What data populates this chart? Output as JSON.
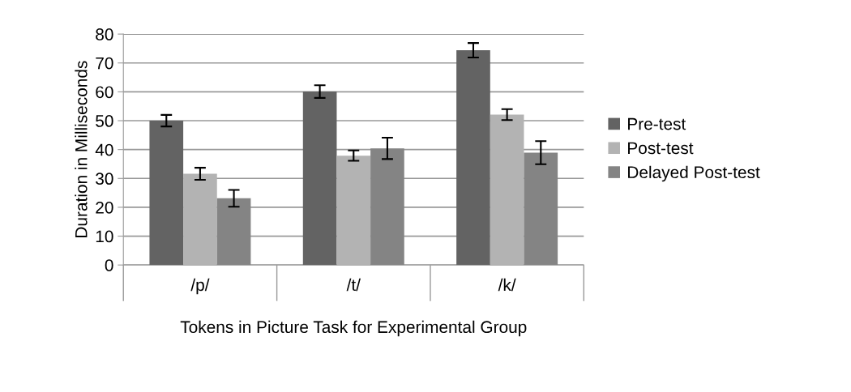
{
  "chart_data": {
    "type": "bar",
    "xlabel": "Tokens in Picture Task for Experimental Group",
    "ylabel": "Duration in Milliseconds",
    "categories": [
      "/p/",
      "/t/",
      "/k/"
    ],
    "series": [
      {
        "name": "Pre-test",
        "color": "#636363",
        "values": [
          50,
          60.1,
          74.4
        ],
        "errors": [
          2,
          2.2,
          2.5
        ]
      },
      {
        "name": "Post-test",
        "color": "#b3b3b3",
        "values": [
          31.6,
          37.9,
          52.1
        ],
        "errors": [
          2.1,
          1.8,
          1.9
        ]
      },
      {
        "name": "Delayed Post-test",
        "color": "#848484",
        "values": [
          23.1,
          40.4,
          38.9
        ],
        "errors": [
          2.9,
          3.7,
          4
        ]
      }
    ],
    "ylim": [
      0,
      80
    ],
    "yticks": [
      0,
      10,
      20,
      30,
      40,
      50,
      60,
      70,
      80
    ],
    "grid": "y",
    "legend": "right"
  }
}
